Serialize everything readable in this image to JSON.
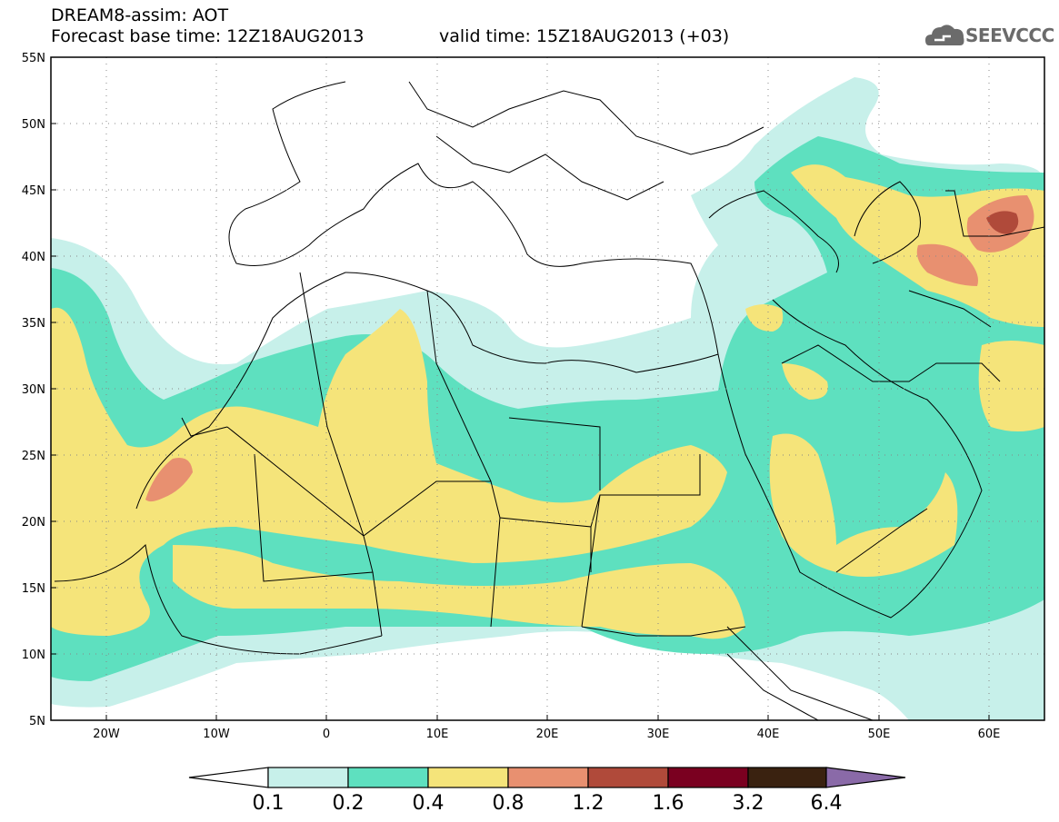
{
  "header": {
    "line1": "DREAM8-assim: AOT",
    "line2": "Forecast base time: 12Z18AUG2013",
    "valid": "valid time: 15Z18AUG2013 (+03)"
  },
  "logo": {
    "text": "SEEVCCC",
    "icon": "cloud-icon"
  },
  "map": {
    "variable": "AOT",
    "lon_range": [
      -25,
      65
    ],
    "lat_range": [
      5,
      55
    ],
    "lat_ticks": [
      "55N",
      "50N",
      "45N",
      "40N",
      "35N",
      "30N",
      "25N",
      "20N",
      "15N",
      "10N",
      "5N"
    ],
    "lon_ticks": [
      "20W",
      "10W",
      "0",
      "10E",
      "20E",
      "30E",
      "40E",
      "50E",
      "60E"
    ],
    "grid": "dotted"
  },
  "colorbar": {
    "labels": [
      "0.1",
      "0.2",
      "0.4",
      "0.8",
      "1.2",
      "1.6",
      "3.2",
      "6.4"
    ],
    "colors": [
      "#c7f0ea",
      "#5ee0bf",
      "#f5e47a",
      "#e89070",
      "#b04a3a",
      "#7a0020",
      "#3a2210",
      "#8a6aa8"
    ]
  }
}
